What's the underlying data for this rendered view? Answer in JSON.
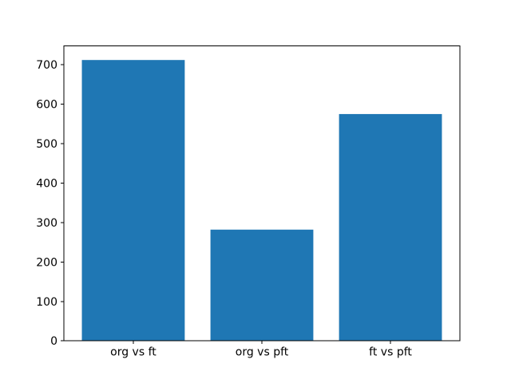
{
  "chart_data": {
    "type": "bar",
    "title": "",
    "xlabel": "",
    "ylabel": "",
    "categories": [
      "org vs ft",
      "org vs pft",
      "ft vs pft"
    ],
    "values": [
      712,
      282,
      575
    ],
    "yticks": [
      0,
      100,
      200,
      300,
      400,
      500,
      600,
      700
    ],
    "ylim": [
      0,
      747.6
    ],
    "xlim": [
      -0.54,
      2.54
    ],
    "bar_width": 0.8,
    "bar_color": "#1f77b4",
    "axis_color": "#000000",
    "background_color": "#ffffff",
    "grid": false,
    "legend": "none"
  }
}
